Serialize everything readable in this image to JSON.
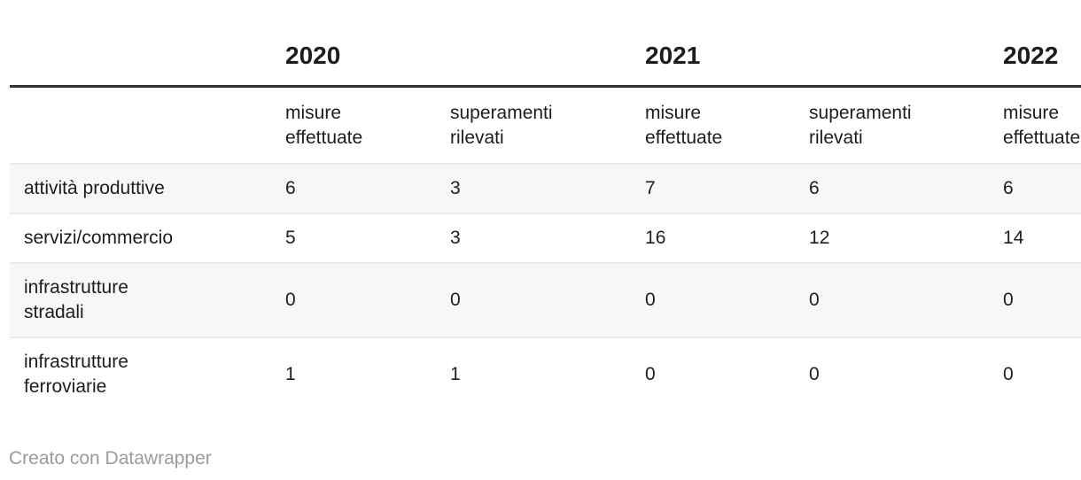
{
  "page": {
    "background": "#ffffff"
  },
  "colors": {
    "text": "#1d1d1d",
    "header_rule": "#333333",
    "zebra_row": "#f7f7f7",
    "row_separator": "#e9e9e9",
    "attribution_text": "#9b9b9b"
  },
  "table": {
    "year_groups": [
      {
        "label": "2020"
      },
      {
        "label": "2021"
      },
      {
        "label": "2022"
      }
    ],
    "column_headers": [
      "misure effettuate",
      "superamenti rilevati",
      "misure effettuate",
      "superamenti rilevati",
      "misure effettuate"
    ],
    "rows": [
      {
        "label": "attività produttive",
        "values": [
          6,
          3,
          7,
          6,
          6
        ]
      },
      {
        "label": "servizi/commercio",
        "values": [
          5,
          3,
          16,
          12,
          14
        ]
      },
      {
        "label": "infrastrutture stradali",
        "values": [
          0,
          0,
          0,
          0,
          0
        ]
      },
      {
        "label": "infrastrutture ferroviarie",
        "values": [
          1,
          1,
          0,
          0,
          0
        ]
      }
    ]
  },
  "footer": {
    "attribution": "Creato con Datawrapper"
  },
  "chart_data": {
    "type": "table",
    "title": "",
    "column_groups": [
      {
        "year": "2020",
        "columns": [
          "misure effettuate",
          "superamenti rilevati"
        ]
      },
      {
        "year": "2021",
        "columns": [
          "misure effettuate",
          "superamenti rilevati"
        ]
      },
      {
        "year": "2022",
        "columns": [
          "misure effettuate"
        ]
      }
    ],
    "rows": [
      {
        "category": "attività produttive",
        "values_by_year": {
          "2020": [
            6,
            3
          ],
          "2021": [
            7,
            6
          ],
          "2022": [
            6
          ]
        }
      },
      {
        "category": "servizi/commercio",
        "values_by_year": {
          "2020": [
            5,
            3
          ],
          "2021": [
            16,
            12
          ],
          "2022": [
            14
          ]
        }
      },
      {
        "category": "infrastrutture stradali",
        "values_by_year": {
          "2020": [
            0,
            0
          ],
          "2021": [
            0,
            0
          ],
          "2022": [
            0
          ]
        }
      },
      {
        "category": "infrastrutture ferroviarie",
        "values_by_year": {
          "2020": [
            1,
            1
          ],
          "2021": [
            0,
            0
          ],
          "2022": [
            0
          ]
        }
      }
    ],
    "footer": "Creato con Datawrapper"
  }
}
